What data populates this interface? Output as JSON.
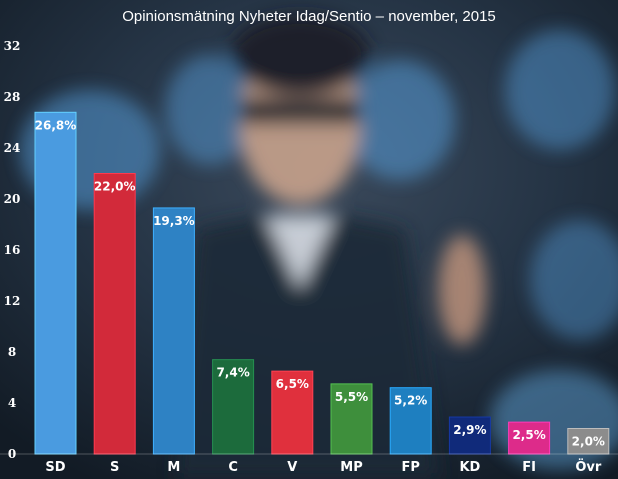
{
  "chart_data": {
    "type": "bar",
    "title": "Opinionsmätning Nyheter Idag/Sentio – november, 2015",
    "categories": [
      "SD",
      "S",
      "M",
      "C",
      "V",
      "MP",
      "FP",
      "KD",
      "FI",
      "Övr"
    ],
    "values": [
      26.8,
      22.0,
      19.3,
      7.4,
      6.5,
      5.5,
      5.2,
      2.9,
      2.5,
      2.0
    ],
    "value_labels": [
      "26,8%",
      "22,0%",
      "19,3%",
      "7,4%",
      "6,5%",
      "5,5%",
      "5,2%",
      "2,9%",
      "2,5%",
      "2,0%"
    ],
    "colors": [
      "#4a9be0",
      "#d22a3a",
      "#2e82c4",
      "#1c6b3c",
      "#e0303d",
      "#3e8f3c",
      "#1e7fc0",
      "#102a7a",
      "#dd2b8a",
      "#8c8c8c"
    ],
    "ylim": [
      0,
      32
    ],
    "yticks": [
      0,
      4,
      8,
      12,
      16,
      20,
      24,
      28,
      32
    ],
    "xlabel": "",
    "ylabel": "",
    "grid": false,
    "background": "blurred photograph"
  }
}
